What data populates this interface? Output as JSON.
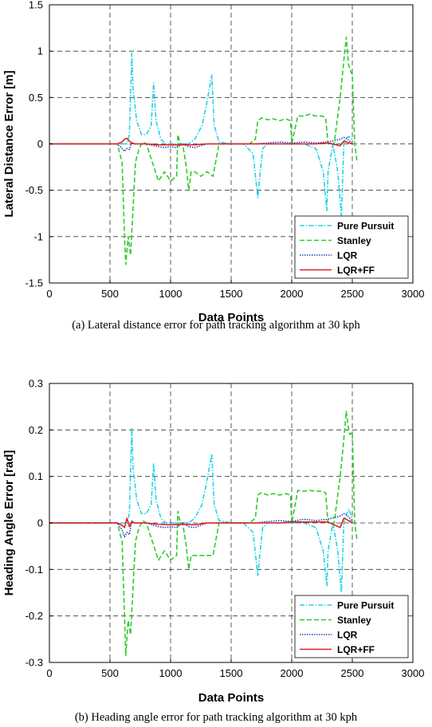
{
  "chart_data": [
    {
      "type": "line",
      "caption": "(a) Lateral distance error for path tracking algorithm at 30 kph",
      "xlabel": "Data Points",
      "ylabel": "Lateral Distance Error [m]",
      "xlim": [
        0,
        3000
      ],
      "ylim": [
        -1.5,
        1.5
      ],
      "xticks": [
        0,
        500,
        1000,
        1500,
        2000,
        2500,
        3000
      ],
      "yticks": [
        -1.5,
        -1,
        -0.5,
        0,
        0.5,
        1,
        1.5
      ],
      "ytick_labels": [
        "-1.5",
        "-1",
        "-0.5",
        "0",
        "0.5",
        "1",
        "1.5"
      ],
      "grid": true,
      "legend_position": "bottom-right",
      "series": [
        {
          "name": "Pure Pursuit",
          "color": "#22d3e6",
          "dash": "dashdot",
          "x": [
            0,
            590,
            640,
            660,
            680,
            690,
            720,
            760,
            800,
            840,
            860,
            880,
            920,
            960,
            1000,
            1060,
            1100,
            1150,
            1200,
            1260,
            1300,
            1340,
            1360,
            1400,
            1500,
            1600,
            1680,
            1720,
            1740,
            1760,
            1800,
            1900,
            2000,
            2100,
            2200,
            2260,
            2290,
            2300,
            2340,
            2380,
            2410,
            2430,
            2440,
            2470,
            2500
          ],
          "y": [
            0,
            0,
            0,
            0.1,
            0.98,
            0.6,
            0.25,
            0.1,
            0.1,
            0.2,
            0.66,
            0.25,
            0.05,
            0,
            0,
            0,
            0,
            0,
            0.05,
            0.2,
            0.45,
            0.74,
            0.2,
            0.02,
            0,
            0,
            -0.1,
            -0.58,
            -0.3,
            -0.05,
            0,
            0,
            0,
            0,
            -0.05,
            -0.3,
            -0.72,
            -0.3,
            0,
            -0.3,
            -0.78,
            0,
            0.05,
            0.08,
            0.05
          ]
        },
        {
          "name": "Stanley",
          "color": "#2ecc2e",
          "dash": "dashed",
          "x": [
            0,
            560,
            600,
            620,
            630,
            650,
            670,
            690,
            710,
            740,
            770,
            800,
            850,
            900,
            950,
            1000,
            1050,
            1060,
            1080,
            1100,
            1130,
            1150,
            1170,
            1200,
            1250,
            1300,
            1350,
            1400,
            1500,
            1600,
            1650,
            1700,
            1720,
            1750,
            1800,
            1850,
            1900,
            1950,
            1990,
            2000,
            2050,
            2100,
            2150,
            2200,
            2250,
            2280,
            2300,
            2350,
            2400,
            2430,
            2450,
            2470,
            2480,
            2500,
            2520,
            2540
          ],
          "y": [
            0,
            0,
            -0.2,
            -1.0,
            -1.3,
            -1.0,
            -1.2,
            -0.7,
            -0.2,
            -0.05,
            0.02,
            0,
            -0.2,
            -0.4,
            -0.3,
            -0.4,
            -0.35,
            0.1,
            0,
            0,
            -0.25,
            -0.5,
            -0.3,
            -0.3,
            -0.35,
            -0.3,
            -0.35,
            0,
            0,
            0,
            0,
            0.05,
            0.25,
            0.28,
            0.26,
            0.27,
            0.25,
            0.27,
            0.25,
            0,
            0.3,
            0.3,
            0.32,
            0.3,
            0.3,
            0.28,
            0,
            0,
            0.5,
            0.9,
            1.15,
            0.85,
            0.8,
            0.75,
            0,
            -0.2
          ]
        },
        {
          "name": "LQR",
          "color": "#1f3fbf",
          "dash": "dotted",
          "x": [
            0,
            560,
            600,
            620,
            640,
            660,
            680,
            700,
            800,
            900,
            950,
            1000,
            1050,
            1100,
            1150,
            1200,
            1300,
            1400,
            1500,
            1600,
            1700,
            1800,
            1900,
            2000,
            2100,
            2200,
            2300,
            2400,
            2430,
            2450,
            2480,
            2500
          ],
          "y": [
            0,
            0,
            -0.05,
            -0.08,
            -0.05,
            -0.06,
            0.02,
            0,
            0,
            -0.03,
            -0.04,
            -0.03,
            -0.04,
            0,
            -0.03,
            -0.04,
            0,
            0,
            0,
            0,
            0,
            0.01,
            0.02,
            0.01,
            0.02,
            0.01,
            0.02,
            0.05,
            0.07,
            0.06,
            0.03,
            0
          ]
        },
        {
          "name": "LQR+FF",
          "color": "#e02020",
          "dash": "solid",
          "x": [
            0,
            560,
            600,
            620,
            640,
            660,
            680,
            700,
            800,
            900,
            1000,
            1100,
            1200,
            1300,
            1400,
            1500,
            1600,
            1700,
            1800,
            1900,
            2000,
            2100,
            2200,
            2300,
            2400,
            2430,
            2450,
            2480,
            2500
          ],
          "y": [
            0,
            0,
            0.02,
            0.05,
            0.06,
            0.03,
            0.01,
            0,
            0,
            -0.01,
            -0.01,
            -0.01,
            -0.01,
            0,
            0,
            0,
            0,
            0,
            0,
            0,
            0,
            0,
            0,
            0.01,
            -0.02,
            0.03,
            0.02,
            0.01,
            0
          ]
        }
      ]
    },
    {
      "type": "line",
      "caption": "(b) Heading angle error for path tracking algorithm at 30 kph",
      "xlabel": "Data Points",
      "ylabel": "Heading Angle Error [rad]",
      "xlim": [
        0,
        3000
      ],
      "ylim": [
        -0.3,
        0.3
      ],
      "xticks": [
        0,
        500,
        1000,
        1500,
        2000,
        2500,
        3000
      ],
      "yticks": [
        -0.3,
        -0.2,
        -0.1,
        0,
        0.1,
        0.2,
        0.3
      ],
      "ytick_labels": [
        "-0.3",
        "-0.2",
        "-0.1",
        "0",
        "0.1",
        "0.2",
        "0.3"
      ],
      "grid": true,
      "legend_position": "bottom-right",
      "series": [
        {
          "name": "Pure Pursuit",
          "color": "#22d3e6",
          "dash": "dashdot",
          "x": [
            0,
            590,
            640,
            660,
            680,
            690,
            720,
            760,
            800,
            840,
            860,
            880,
            920,
            960,
            1000,
            1060,
            1100,
            1150,
            1200,
            1260,
            1300,
            1340,
            1360,
            1400,
            1500,
            1600,
            1680,
            1720,
            1740,
            1760,
            1800,
            1900,
            2000,
            2100,
            2200,
            2260,
            2290,
            2300,
            2340,
            2380,
            2410,
            2430,
            2440,
            2470,
            2500
          ],
          "y": [
            0,
            0,
            0,
            0.02,
            0.205,
            0.12,
            0.05,
            0.02,
            0.02,
            0.04,
            0.128,
            0.05,
            0.01,
            0,
            0,
            0,
            0,
            0,
            0.01,
            0.04,
            0.09,
            0.148,
            0.04,
            0.005,
            0,
            0,
            -0.02,
            -0.113,
            -0.06,
            -0.01,
            0,
            0,
            0,
            0,
            -0.01,
            -0.06,
            -0.135,
            -0.06,
            0,
            -0.06,
            -0.15,
            0,
            0.01,
            0.03,
            0.01
          ]
        },
        {
          "name": "Stanley",
          "color": "#2ecc2e",
          "dash": "dashed",
          "x": [
            0,
            560,
            600,
            620,
            630,
            650,
            670,
            690,
            710,
            740,
            770,
            800,
            850,
            900,
            950,
            1000,
            1050,
            1060,
            1080,
            1100,
            1130,
            1150,
            1170,
            1200,
            1250,
            1300,
            1350,
            1400,
            1500,
            1600,
            1650,
            1700,
            1720,
            1750,
            1800,
            1850,
            1900,
            1950,
            1990,
            2000,
            2050,
            2100,
            2150,
            2200,
            2250,
            2280,
            2300,
            2350,
            2400,
            2430,
            2450,
            2470,
            2480,
            2500,
            2520,
            2540
          ],
          "y": [
            0,
            0,
            -0.04,
            -0.2,
            -0.285,
            -0.21,
            -0.24,
            -0.14,
            -0.04,
            -0.01,
            0.005,
            0,
            -0.04,
            -0.08,
            -0.06,
            -0.08,
            -0.07,
            0.025,
            0,
            0,
            -0.05,
            -0.1,
            -0.07,
            -0.07,
            -0.07,
            -0.07,
            -0.07,
            0,
            0,
            0,
            0,
            0.01,
            0.06,
            0.065,
            0.06,
            0.063,
            0.06,
            0.063,
            0.06,
            0,
            0.07,
            0.068,
            0.07,
            0.068,
            0.068,
            0.065,
            0,
            0,
            0.1,
            0.18,
            0.24,
            0.2,
            0.19,
            0.195,
            0,
            -0.04
          ]
        },
        {
          "name": "LQR",
          "color": "#1f3fbf",
          "dash": "dotted",
          "x": [
            0,
            560,
            600,
            620,
            640,
            660,
            680,
            700,
            800,
            900,
            950,
            1000,
            1050,
            1100,
            1150,
            1200,
            1300,
            1400,
            1500,
            1600,
            1700,
            1800,
            1900,
            2000,
            2100,
            2200,
            2300,
            2400,
            2430,
            2450,
            2480,
            2500
          ],
          "y": [
            0,
            0,
            -0.015,
            -0.03,
            -0.02,
            -0.025,
            0.005,
            0,
            0,
            -0.008,
            -0.01,
            -0.008,
            -0.01,
            0,
            -0.008,
            -0.01,
            0,
            0,
            0,
            0,
            0,
            0.003,
            0.005,
            0.003,
            0.008,
            0.005,
            0.008,
            0.015,
            0.02,
            0.018,
            0.01,
            0
          ]
        },
        {
          "name": "LQR+FF",
          "color": "#e02020",
          "dash": "solid",
          "x": [
            0,
            560,
            600,
            620,
            640,
            660,
            680,
            700,
            800,
            900,
            1000,
            1100,
            1200,
            1300,
            1400,
            1500,
            1600,
            1700,
            1800,
            1900,
            2000,
            2100,
            2200,
            2300,
            2400,
            2430,
            2450,
            2480,
            2500
          ],
          "y": [
            0,
            0,
            -0.005,
            -0.01,
            0.01,
            -0.008,
            0.002,
            0,
            0,
            -0.003,
            -0.004,
            -0.003,
            -0.004,
            0,
            0,
            0,
            0,
            0,
            0,
            0,
            0.002,
            0.002,
            0.002,
            0.002,
            -0.01,
            0.01,
            0.008,
            0.003,
            0
          ]
        }
      ]
    }
  ]
}
